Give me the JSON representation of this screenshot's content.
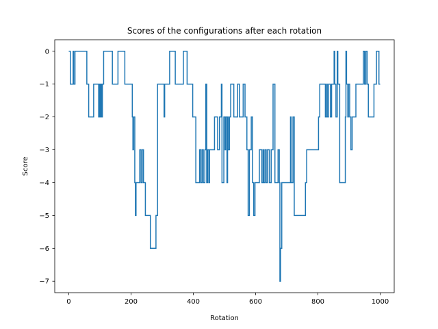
{
  "chart_data": {
    "type": "line",
    "title": "Scores of the configurations after each rotation",
    "xlabel": "Rotation",
    "ylabel": "Score",
    "xlim": [
      -45,
      1045
    ],
    "ylim": [
      -7.35,
      0.35
    ],
    "xticks": [
      0,
      200,
      400,
      600,
      800,
      1000
    ],
    "yticks": [
      0,
      -1,
      -2,
      -3,
      -4,
      -5,
      -6,
      -7
    ],
    "xtick_labels": [
      "0",
      "200",
      "400",
      "600",
      "800",
      "1000"
    ],
    "ytick_labels": [
      "0",
      "−1",
      "−2",
      "−3",
      "−4",
      "−5",
      "−6",
      "−7"
    ],
    "grid": false,
    "line_color": "#1f77b4",
    "series": [
      {
        "steps": [
          [
            0,
            0
          ],
          [
            5,
            -1
          ],
          [
            14,
            0
          ],
          [
            16,
            -1
          ],
          [
            20,
            0
          ],
          [
            58,
            -1
          ],
          [
            64,
            -2
          ],
          [
            80,
            -1
          ],
          [
            96,
            -2
          ],
          [
            99,
            -1
          ],
          [
            100,
            -2
          ],
          [
            103,
            -1
          ],
          [
            106,
            -2
          ],
          [
            108,
            -1
          ],
          [
            112,
            0
          ],
          [
            140,
            -1
          ],
          [
            158,
            0
          ],
          [
            180,
            -1
          ],
          [
            204,
            -2
          ],
          [
            206,
            -3
          ],
          [
            208,
            -2
          ],
          [
            212,
            -4
          ],
          [
            214,
            -5
          ],
          [
            216,
            -4
          ],
          [
            228,
            -3
          ],
          [
            232,
            -4
          ],
          [
            236,
            -3
          ],
          [
            240,
            -4
          ],
          [
            246,
            -5
          ],
          [
            262,
            -6
          ],
          [
            280,
            -5
          ],
          [
            285,
            -1
          ],
          [
            306,
            -2
          ],
          [
            308,
            -1
          ],
          [
            324,
            0
          ],
          [
            342,
            -1
          ],
          [
            368,
            0
          ],
          [
            380,
            -1
          ],
          [
            398,
            -2
          ],
          [
            408,
            -4
          ],
          [
            420,
            -3
          ],
          [
            424,
            -4
          ],
          [
            428,
            -3
          ],
          [
            432,
            -4
          ],
          [
            437,
            -3
          ],
          [
            440,
            -1
          ],
          [
            443,
            -4
          ],
          [
            446,
            -3
          ],
          [
            450,
            -4
          ],
          [
            452,
            -3
          ],
          [
            468,
            -2
          ],
          [
            478,
            -3
          ],
          [
            484,
            -2
          ],
          [
            490,
            -1
          ],
          [
            492,
            -4
          ],
          [
            498,
            -2
          ],
          [
            502,
            -3
          ],
          [
            504,
            -2
          ],
          [
            508,
            -4
          ],
          [
            510,
            -2
          ],
          [
            512,
            -3
          ],
          [
            516,
            -2
          ],
          [
            520,
            -1
          ],
          [
            524,
            -1
          ],
          [
            530,
            -2
          ],
          [
            542,
            -1
          ],
          [
            548,
            -2
          ],
          [
            560,
            -1
          ],
          [
            566,
            -2
          ],
          [
            572,
            -3
          ],
          [
            576,
            -5
          ],
          [
            580,
            -3
          ],
          [
            586,
            -2
          ],
          [
            590,
            -4
          ],
          [
            594,
            -5
          ],
          [
            598,
            -4
          ],
          [
            612,
            -3
          ],
          [
            620,
            -4
          ],
          [
            624,
            -3
          ],
          [
            626,
            -4
          ],
          [
            630,
            -3
          ],
          [
            634,
            -4
          ],
          [
            638,
            -3
          ],
          [
            644,
            -4
          ],
          [
            650,
            -3
          ],
          [
            656,
            -1
          ],
          [
            662,
            -4
          ],
          [
            672,
            -3
          ],
          [
            676,
            -4
          ],
          [
            678,
            -7
          ],
          [
            680,
            -6
          ],
          [
            684,
            -4
          ],
          [
            712,
            -2
          ],
          [
            714,
            -4
          ],
          [
            720,
            -2
          ],
          [
            724,
            -5
          ],
          [
            760,
            -4
          ],
          [
            764,
            -3
          ],
          [
            802,
            -2
          ],
          [
            806,
            -1
          ],
          [
            824,
            -2
          ],
          [
            828,
            -1
          ],
          [
            830,
            -2
          ],
          [
            834,
            -1
          ],
          [
            840,
            -2
          ],
          [
            844,
            -1
          ],
          [
            852,
            0
          ],
          [
            854,
            -1
          ],
          [
            858,
            -2
          ],
          [
            862,
            0
          ],
          [
            864,
            -1
          ],
          [
            870,
            -4
          ],
          [
            888,
            -2
          ],
          [
            890,
            0
          ],
          [
            892,
            -1
          ],
          [
            896,
            -2
          ],
          [
            898,
            -1
          ],
          [
            902,
            -2
          ],
          [
            906,
            -3
          ],
          [
            910,
            -2
          ],
          [
            922,
            -1
          ],
          [
            946,
            0
          ],
          [
            950,
            -1
          ],
          [
            954,
            0
          ],
          [
            958,
            -1
          ],
          [
            962,
            -2
          ],
          [
            980,
            -1
          ],
          [
            988,
            0
          ],
          [
            996,
            -1
          ],
          [
            1000,
            -1
          ]
        ]
      }
    ]
  }
}
